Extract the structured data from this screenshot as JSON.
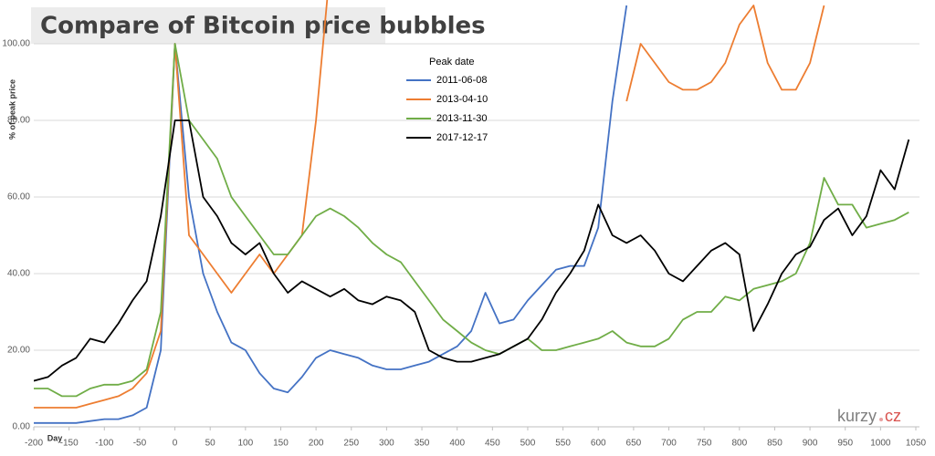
{
  "chart_data": {
    "type": "line",
    "title": "Compare of Bitcoin price bubbles",
    "y_label": "% of peak price",
    "x_label": "Day",
    "legend_title": "Peak date",
    "watermark": [
      "kurzy",
      "cz"
    ],
    "grid": true,
    "xlim": [
      -200,
      1050
    ],
    "ylim": [
      0,
      100
    ],
    "xticks": [
      -200,
      -150,
      -100,
      -50,
      0,
      50,
      100,
      150,
      200,
      250,
      300,
      350,
      400,
      450,
      500,
      550,
      600,
      650,
      700,
      750,
      800,
      850,
      900,
      950,
      1000,
      1050
    ],
    "yticks": [
      {
        "value": 0,
        "label": "0.00"
      },
      {
        "value": 20,
        "label": "20.00"
      },
      {
        "value": 40,
        "label": "40.00"
      },
      {
        "value": 60,
        "label": "60.00"
      },
      {
        "value": 80,
        "label": "80.00"
      },
      {
        "value": 100,
        "label": "100.00"
      }
    ],
    "x": [
      -200,
      -180,
      -160,
      -140,
      -120,
      -100,
      -80,
      -60,
      -40,
      -20,
      0,
      20,
      40,
      60,
      80,
      100,
      120,
      140,
      160,
      180,
      200,
      220,
      240,
      260,
      280,
      300,
      320,
      340,
      360,
      380,
      400,
      420,
      440,
      460,
      480,
      500,
      520,
      540,
      560,
      580,
      600,
      620,
      640,
      660,
      680,
      700,
      720,
      740,
      760,
      780,
      800,
      820,
      840,
      860,
      880,
      900,
      920,
      940,
      960,
      980,
      1000,
      1020,
      1040
    ],
    "series": [
      {
        "name": "2011-06-08",
        "color": "#4472c4",
        "values": [
          1,
          1,
          1,
          1,
          1.5,
          2,
          2,
          3,
          5,
          20,
          100,
          60,
          40,
          30,
          22,
          20,
          14,
          10,
          9,
          13,
          18,
          20,
          19,
          18,
          16,
          15,
          15,
          16,
          17,
          19,
          21,
          25,
          35,
          27,
          28,
          33,
          37,
          41,
          42,
          42,
          52,
          85,
          110,
          null,
          null,
          null,
          null,
          null,
          null,
          null,
          null,
          null,
          null,
          null,
          null,
          null,
          null,
          null,
          null,
          null,
          null,
          null,
          null
        ]
      },
      {
        "name": "2013-04-10",
        "color": "#ed7d31",
        "values": [
          5,
          5,
          5,
          5,
          6,
          7,
          8,
          10,
          14,
          25,
          100,
          50,
          45,
          40,
          35,
          40,
          45,
          40,
          45,
          50,
          80,
          120,
          null,
          null,
          null,
          null,
          null,
          null,
          null,
          null,
          null,
          null,
          null,
          null,
          null,
          null,
          null,
          null,
          null,
          null,
          null,
          null,
          85,
          100,
          95,
          90,
          88,
          88,
          90,
          95,
          105,
          110,
          95,
          88,
          88,
          95,
          110,
          null,
          null,
          null,
          null,
          null,
          null
        ]
      },
      {
        "name": "2013-11-30",
        "color": "#70ad47",
        "values": [
          10,
          10,
          8,
          8,
          10,
          11,
          11,
          12,
          15,
          30,
          100,
          80,
          75,
          70,
          60,
          55,
          50,
          45,
          45,
          50,
          55,
          57,
          55,
          52,
          48,
          45,
          43,
          38,
          33,
          28,
          25,
          22,
          20,
          19,
          21,
          23,
          20,
          20,
          21,
          22,
          23,
          25,
          22,
          21,
          21,
          23,
          28,
          30,
          30,
          34,
          33,
          36,
          37,
          38,
          40,
          48,
          65,
          58,
          58,
          52,
          53,
          54,
          56
        ]
      },
      {
        "name": "2017-12-17",
        "color": "#000000",
        "values": [
          12,
          13,
          16,
          18,
          23,
          22,
          27,
          33,
          38,
          55,
          80,
          80,
          60,
          55,
          48,
          45,
          48,
          40,
          35,
          38,
          36,
          34,
          36,
          33,
          32,
          34,
          33,
          30,
          20,
          18,
          17,
          17,
          18,
          19,
          21,
          23,
          28,
          35,
          40,
          46,
          58,
          50,
          48,
          50,
          46,
          40,
          38,
          42,
          46,
          48,
          45,
          25,
          32,
          40,
          45,
          47,
          54,
          57,
          50,
          55,
          67,
          62,
          75
        ]
      }
    ]
  }
}
